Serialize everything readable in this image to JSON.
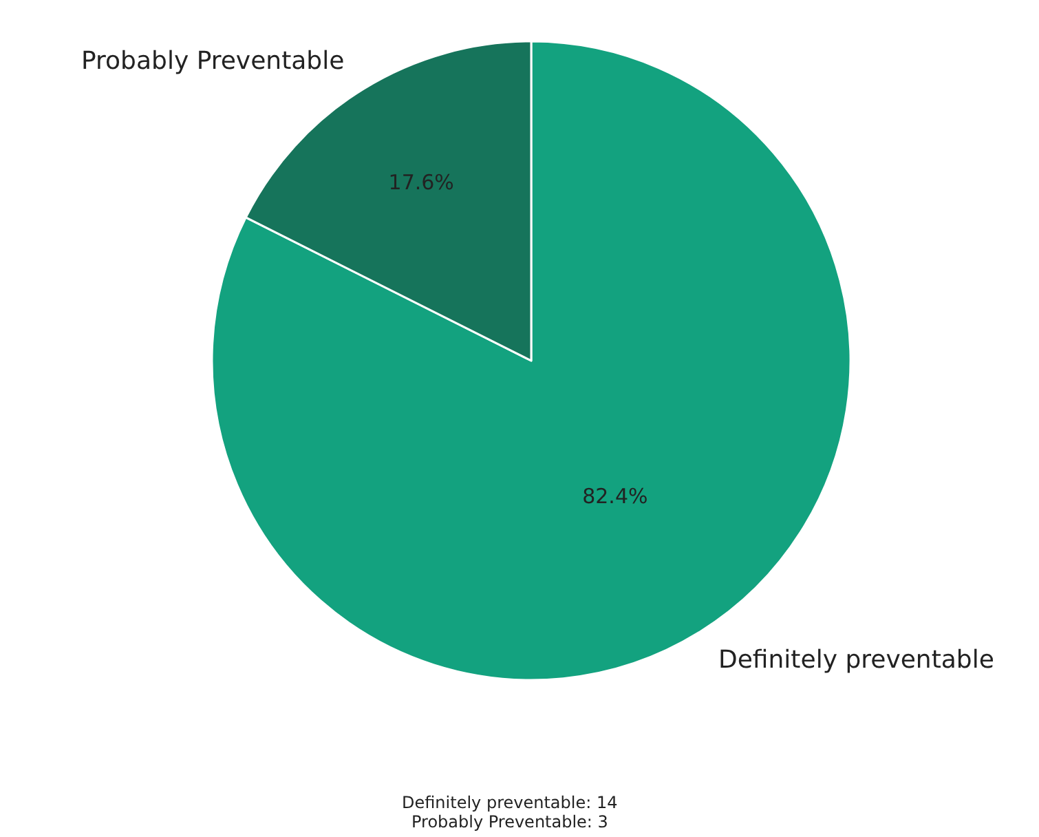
{
  "chart_data": {
    "type": "pie",
    "categories": [
      "Definitely preventable",
      "Probably Preventable"
    ],
    "values": [
      82.4,
      17.6
    ],
    "colors": [
      "#13a27f",
      "#16745b"
    ],
    "value_labels": [
      "82.4%",
      "17.6%"
    ],
    "annotations": [
      "Definitely preventable: 14",
      "Probably Preventable: 3"
    ]
  }
}
